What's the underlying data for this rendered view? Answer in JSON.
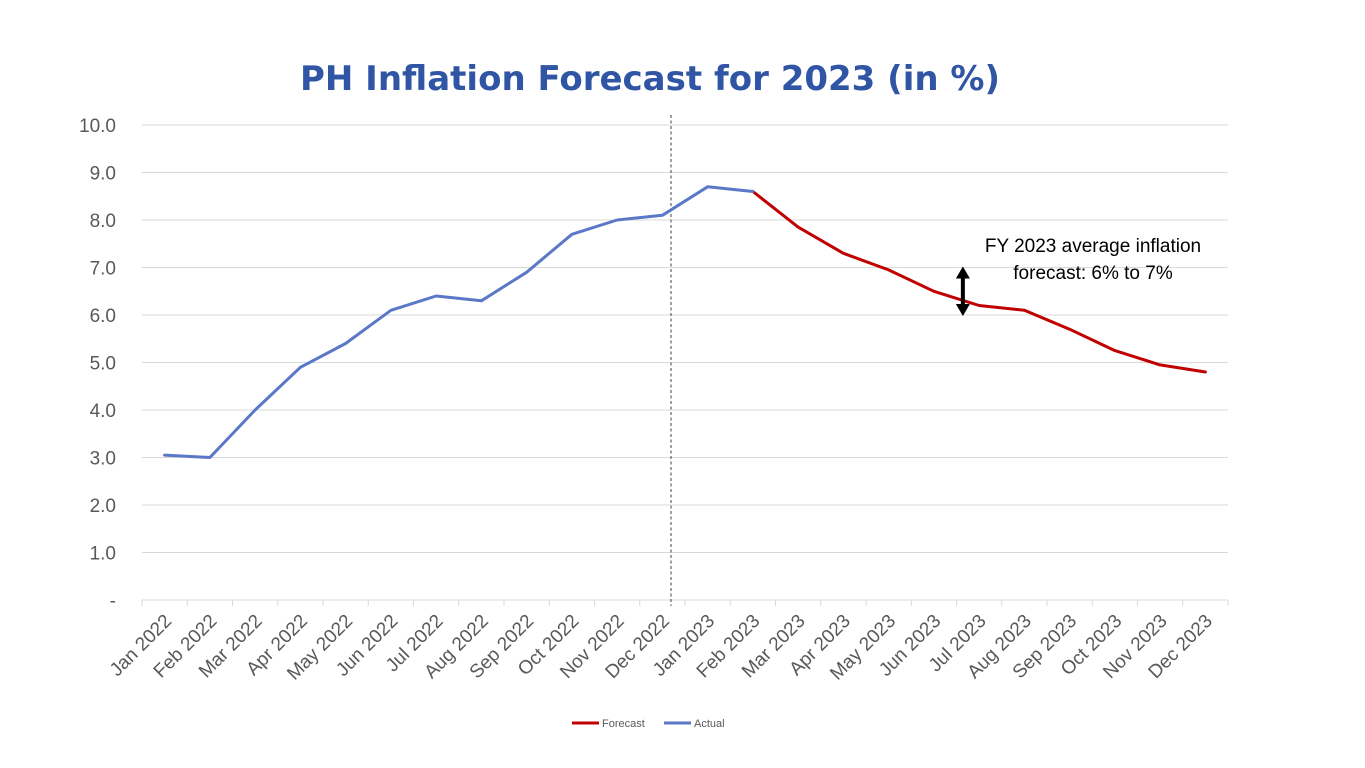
{
  "chart_data": {
    "type": "line",
    "title": "PH Inflation Forecast for 2023 (in %)",
    "xlabel": "",
    "ylabel": "",
    "ylim": [
      0,
      10
    ],
    "y_ticks": [
      "-",
      "1.0",
      "2.0",
      "3.0",
      "4.0",
      "5.0",
      "6.0",
      "7.0",
      "8.0",
      "9.0",
      "10.0"
    ],
    "categories": [
      "Jan 2022",
      "Feb 2022",
      "Mar 2022",
      "Apr 2022",
      "May 2022",
      "Jun 2022",
      "Jul 2022",
      "Aug 2022",
      "Sep 2022",
      "Oct 2022",
      "Nov 2022",
      "Dec 2022",
      "Jan 2023",
      "Feb 2023",
      "Mar 2023",
      "Apr 2023",
      "May 2023",
      "Jun 2023",
      "Jul 2023",
      "Aug 2023",
      "Sep 2023",
      "Oct 2023",
      "Nov 2023",
      "Dec 2023"
    ],
    "series": [
      {
        "name": "Forecast",
        "color": "#c00000",
        "values": [
          null,
          null,
          null,
          null,
          null,
          null,
          null,
          null,
          null,
          null,
          null,
          null,
          null,
          8.6,
          7.85,
          7.3,
          6.95,
          6.5,
          6.2,
          6.1,
          5.7,
          5.25,
          4.95,
          4.8
        ]
      },
      {
        "name": "Actual",
        "color": "#5b78c8",
        "values": [
          3.05,
          3.0,
          4.0,
          4.9,
          5.4,
          6.1,
          6.4,
          6.3,
          6.9,
          7.7,
          8.0,
          8.1,
          8.7,
          8.6,
          null,
          null,
          null,
          null,
          null,
          null,
          null,
          null,
          null,
          null
        ]
      }
    ],
    "grid": true,
    "legend": "bottom",
    "divider_after_category": "Dec 2022",
    "annotation": {
      "lines": [
        "FY 2023 average inflation",
        "forecast: 6% to 7%"
      ],
      "range_low": 6.0,
      "range_high": 7.0,
      "category": "Jun 2023"
    }
  }
}
